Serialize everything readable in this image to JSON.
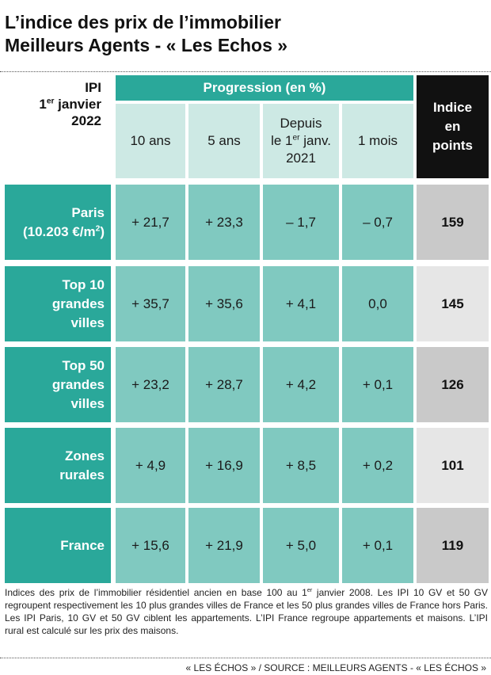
{
  "title_lines": [
    "L’indice des prix de l’immobilier",
    "Meilleurs Agents - « Les Echos »"
  ],
  "ipi_label": {
    "line1": "IPI",
    "line2_pre": "1",
    "line2_sup": "er",
    "line2_post": " janvier",
    "line3": "2022"
  },
  "progression_header": "Progression (en %)",
  "indice_header": [
    "Indice",
    "en",
    "points"
  ],
  "colors": {
    "teal_dark": "#2aa89a",
    "teal_mid": "#80c9c0",
    "teal_light": "#cde9e4",
    "index_dark": "#c9c9c9",
    "index_light": "#e6e6e6",
    "black": "#111111"
  },
  "chart_data": {
    "type": "table",
    "columns": {
      "c10": "10 ans",
      "c5": "5 ans",
      "depuis": {
        "line1": "Depuis",
        "line2_pre": "le 1",
        "line2_sup": "er",
        "line2_post": " janv.",
        "line3": "2021"
      },
      "c1m": "1 mois"
    },
    "rows": [
      {
        "label_lines": [
          "Paris"
        ],
        "label_m2": {
          "pre": "(10.203 €/m",
          "sup": "2",
          "post": ")"
        },
        "values": [
          "+ 21,7",
          "+ 23,3",
          "– 1,7",
          "– 0,7"
        ],
        "index": "159"
      },
      {
        "label_lines": [
          "Top 10",
          "grandes",
          "villes"
        ],
        "values": [
          "+ 35,7",
          "+ 35,6",
          "+ 4,1",
          "0,0"
        ],
        "index": "145"
      },
      {
        "label_lines": [
          "Top 50",
          "grandes",
          "villes"
        ],
        "values": [
          "+ 23,2",
          "+ 28,7",
          "+ 4,2",
          "+ 0,1"
        ],
        "index": "126"
      },
      {
        "label_lines": [
          "Zones",
          "rurales"
        ],
        "values": [
          "+ 4,9",
          "+ 16,9",
          "+ 8,5",
          "+ 0,2"
        ],
        "index": "101"
      },
      {
        "label_lines": [
          "France"
        ],
        "values": [
          "+ 15,6",
          "+ 21,9",
          "+ 5,0",
          "+ 0,1"
        ],
        "index": "119"
      }
    ]
  },
  "note": {
    "pre": "Indices des prix de l’immobilier résidentiel ancien en base 100 au 1",
    "sup": "er",
    "post": " janvier 2008. Les IPI 10 GV et 50 GV regroupent respectivement les 10 plus grandes villes de France et les 50 plus grandes villes de France hors Paris. Les IPI Paris, 10 GV et 50 GV ciblent les appartements. L’IPI France regroupe appartements et maisons. L’IPI rural est calculé sur les prix des maisons."
  },
  "source": "« LES ÉCHOS » / SOURCE : MEILLEURS AGENTS - « LES ÉCHOS »"
}
